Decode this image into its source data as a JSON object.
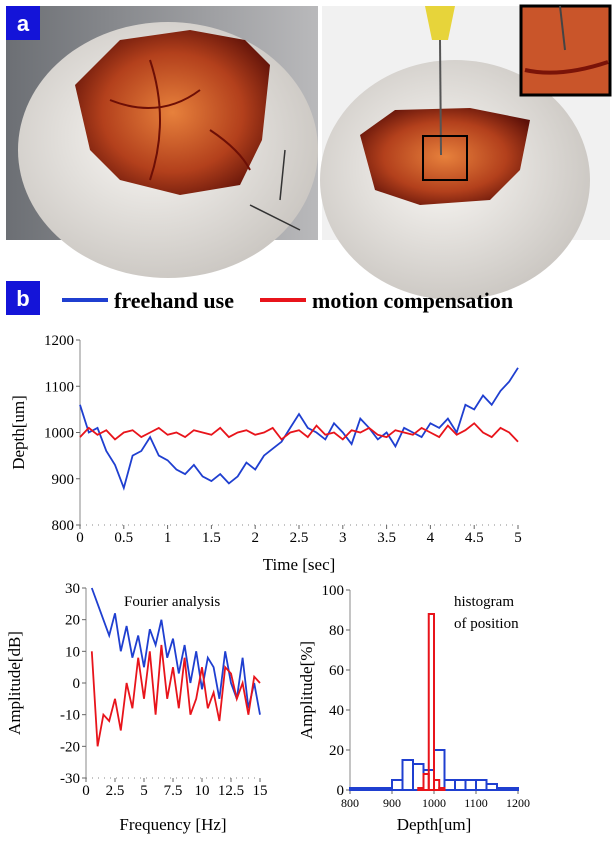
{
  "panel_labels": [
    "a",
    "b"
  ],
  "chart_data": [
    {
      "type": "line",
      "xlabel": "Time [sec]",
      "ylabel": "Depth[um]",
      "xlim": [
        0,
        5
      ],
      "xticks": [
        0,
        0.5,
        1,
        1.5,
        2,
        2.5,
        3,
        3.5,
        4,
        4.5,
        5
      ],
      "ylim": [
        800,
        1200
      ],
      "yticks": [
        800,
        900,
        1000,
        1100,
        1200
      ],
      "x": [
        0,
        0.1,
        0.2,
        0.3,
        0.4,
        0.5,
        0.6,
        0.7,
        0.8,
        0.9,
        1,
        1.1,
        1.2,
        1.3,
        1.4,
        1.5,
        1.6,
        1.7,
        1.8,
        1.9,
        2,
        2.1,
        2.2,
        2.3,
        2.4,
        2.5,
        2.6,
        2.7,
        2.8,
        2.9,
        3,
        3.1,
        3.2,
        3.3,
        3.4,
        3.5,
        3.6,
        3.7,
        3.8,
        3.9,
        4,
        4.1,
        4.2,
        4.3,
        4.4,
        4.5,
        4.6,
        4.7,
        4.8,
        4.9,
        5
      ],
      "series": [
        {
          "name": "freehand use",
          "color": "#1f3fd0",
          "values": [
            1060,
            1000,
            1010,
            960,
            930,
            880,
            950,
            960,
            990,
            950,
            940,
            920,
            910,
            930,
            905,
            895,
            910,
            890,
            905,
            935,
            920,
            950,
            965,
            980,
            1010,
            1040,
            1010,
            1000,
            985,
            1020,
            1000,
            975,
            1030,
            1010,
            985,
            1000,
            970,
            1010,
            1000,
            990,
            1020,
            1010,
            1030,
            1000,
            1060,
            1050,
            1080,
            1060,
            1090,
            1110,
            1140
          ]
        },
        {
          "name": "motion compensation",
          "color": "#e8141b",
          "values": [
            990,
            1010,
            995,
            1005,
            985,
            1000,
            1005,
            990,
            1000,
            1010,
            995,
            1000,
            990,
            1005,
            1000,
            995,
            1010,
            990,
            1000,
            1005,
            995,
            1000,
            1010,
            985,
            1000,
            1005,
            990,
            1015,
            995,
            1000,
            985,
            1005,
            1000,
            1010,
            995,
            990,
            1005,
            1000,
            995,
            1010,
            1000,
            990,
            1015,
            995,
            1005,
            1020,
            1000,
            990,
            1010,
            1000,
            980
          ]
        }
      ]
    },
    {
      "type": "line",
      "xlabel": "Frequency [Hz]",
      "ylabel": "Amplitude[dB]",
      "annotation": "Fourier analysis",
      "xlim": [
        0,
        15
      ],
      "xticks": [
        0,
        2.5,
        5,
        7.5,
        10,
        12.5,
        15
      ],
      "ylim": [
        -30,
        30
      ],
      "yticks": [
        -30,
        -20,
        -10,
        0,
        10,
        20,
        30
      ],
      "x": [
        0.5,
        1,
        1.5,
        2,
        2.5,
        3,
        3.5,
        4,
        4.5,
        5,
        5.5,
        6,
        6.5,
        7,
        7.5,
        8,
        8.5,
        9,
        9.5,
        10,
        10.5,
        11,
        11.5,
        12,
        12.5,
        13,
        13.5,
        14,
        14.5,
        15
      ],
      "series": [
        {
          "color": "#1f3fd0",
          "values": [
            30,
            25,
            20,
            15,
            22,
            10,
            18,
            8,
            15,
            5,
            17,
            12,
            20,
            8,
            14,
            3,
            12,
            0,
            10,
            -2,
            8,
            5,
            -5,
            10,
            0,
            -5,
            8,
            -8,
            0,
            -10
          ]
        },
        {
          "color": "#e8141b",
          "values": [
            10,
            -20,
            -10,
            -12,
            -5,
            -15,
            0,
            -8,
            8,
            -5,
            10,
            -10,
            12,
            -5,
            5,
            -8,
            8,
            -10,
            -5,
            5,
            -8,
            -3,
            -12,
            5,
            3,
            -5,
            0,
            -10,
            2,
            0
          ]
        }
      ]
    },
    {
      "type": "histogram",
      "xlabel": "Depth[um]",
      "ylabel": "Amplitude[%]",
      "annotation": [
        "histogram",
        "of position"
      ],
      "xlim": [
        800,
        1200
      ],
      "xticks": [
        800,
        900,
        1000,
        1100,
        1200
      ],
      "ylim": [
        0,
        100
      ],
      "yticks": [
        0,
        20,
        40,
        60,
        80,
        100
      ],
      "series": [
        {
          "color": "#1f3fd0",
          "bins": [
            800,
            825,
            850,
            875,
            900,
            925,
            950,
            975,
            1000,
            1025,
            1050,
            1075,
            1100,
            1125,
            1150,
            1175,
            1200
          ],
          "values": [
            1,
            1,
            1,
            1,
            5,
            15,
            13,
            10,
            20,
            5,
            5,
            5,
            5,
            3,
            1,
            1
          ]
        },
        {
          "color": "#e8141b",
          "bins": [
            962.5,
            975,
            987.5,
            1000,
            1012.5,
            1025
          ],
          "values": [
            1,
            8,
            88,
            5,
            1
          ]
        }
      ]
    }
  ]
}
